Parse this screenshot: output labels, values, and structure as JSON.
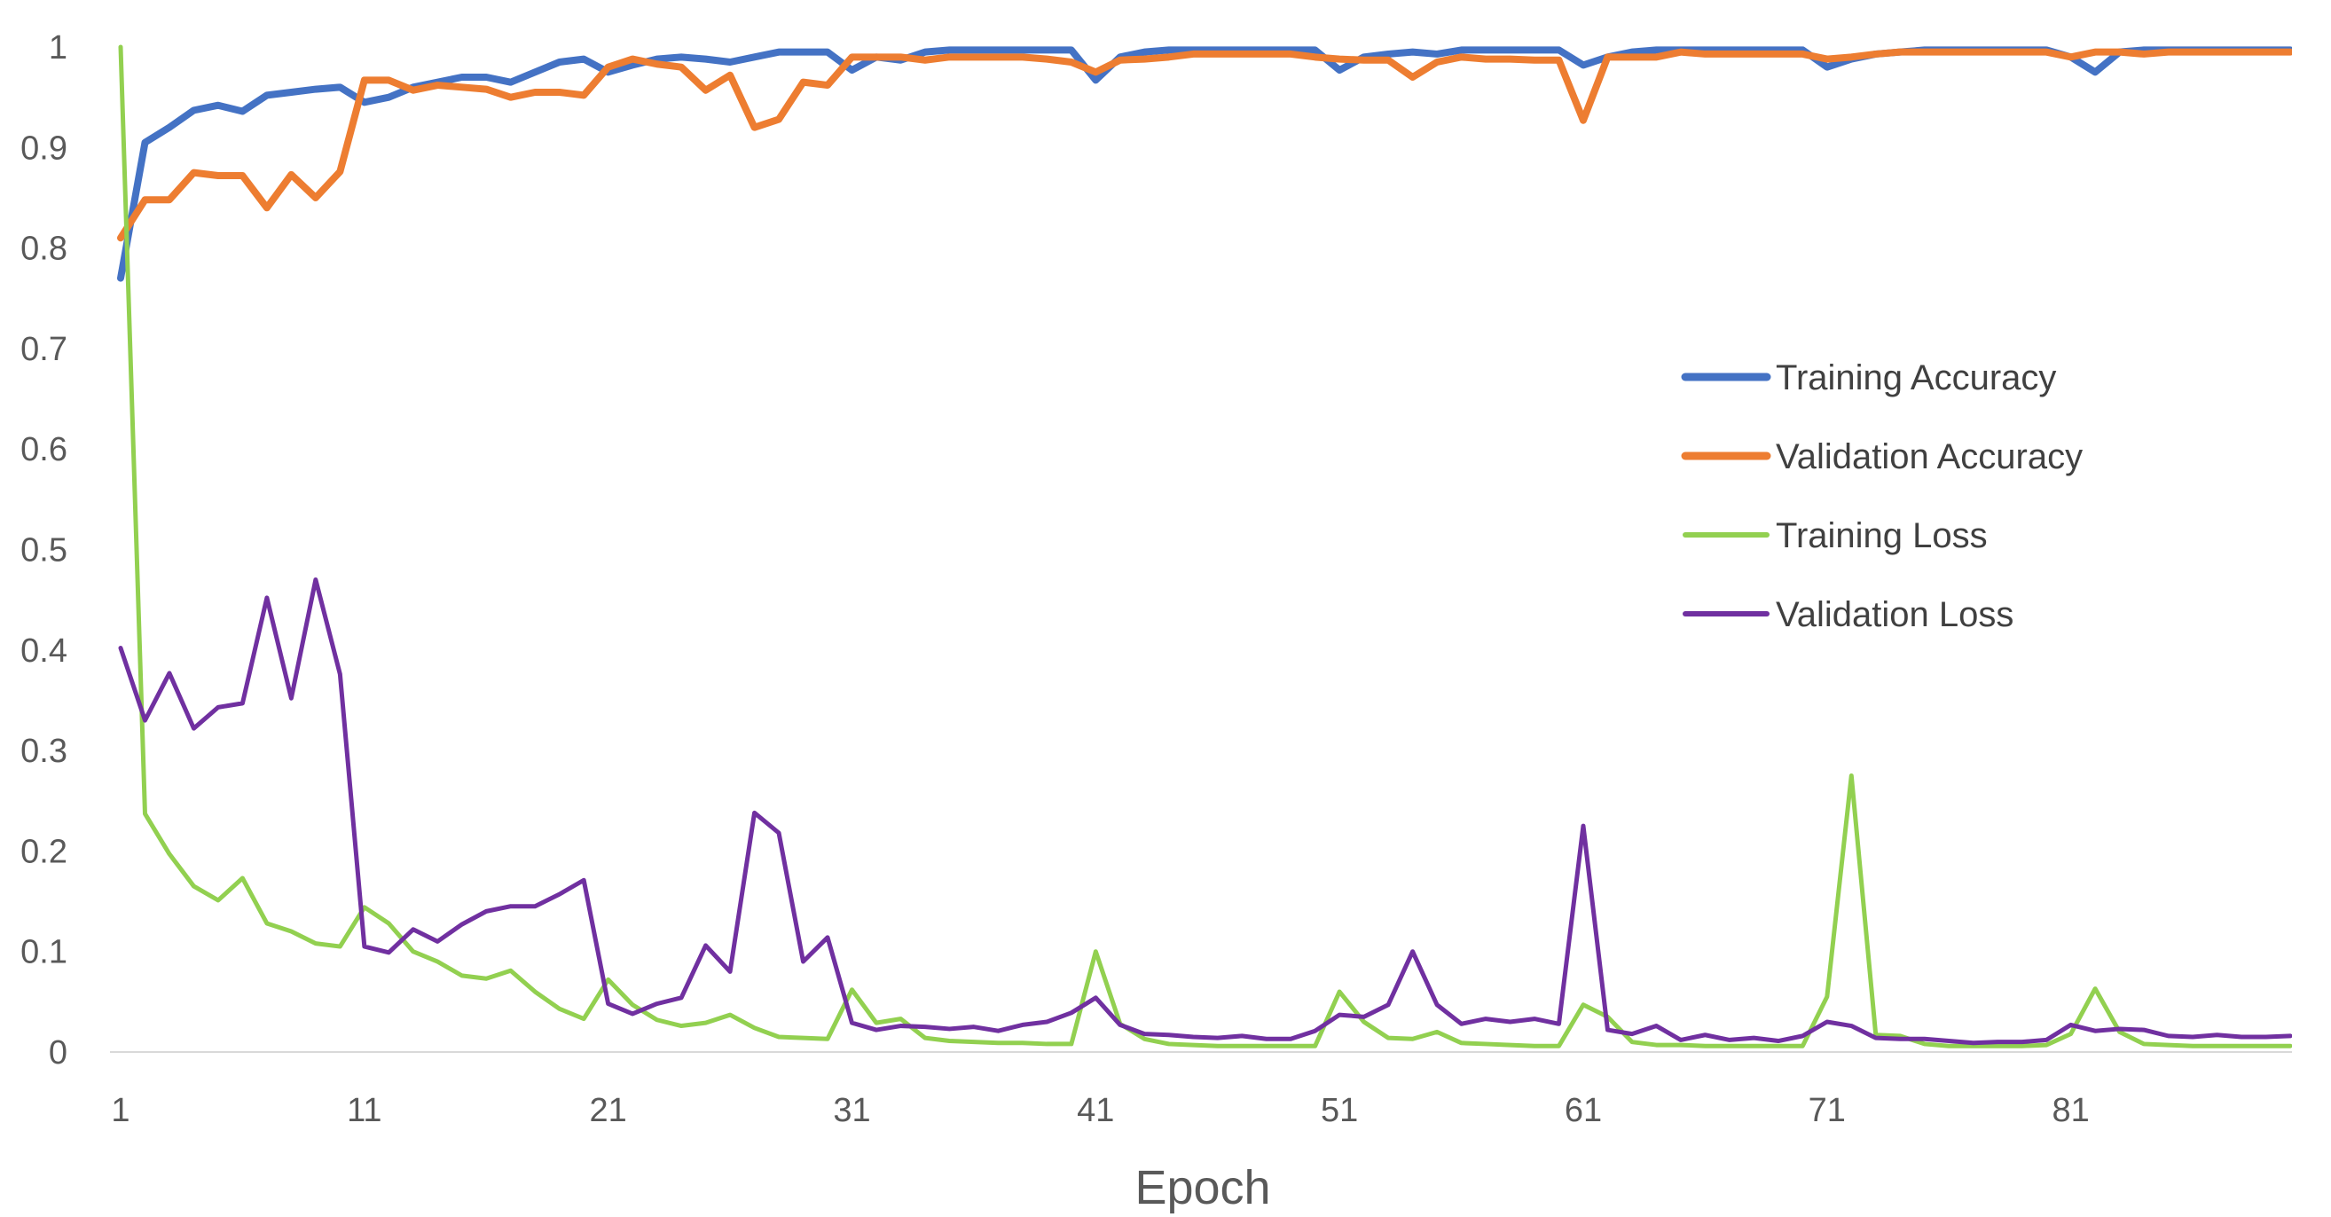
{
  "chart_data": {
    "type": "line",
    "title": "",
    "xlabel": "Epoch",
    "ylabel": "",
    "xlim": [
      1,
      90
    ],
    "ylim": [
      0,
      1
    ],
    "x_ticks": [
      "1",
      "11",
      "21",
      "31",
      "41",
      "51",
      "61",
      "71",
      "81"
    ],
    "x_tick_values": [
      1,
      11,
      21,
      31,
      41,
      51,
      61,
      71,
      81
    ],
    "y_ticks": [
      "0",
      "0.1",
      "0.2",
      "0.3",
      "0.4",
      "0.5",
      "0.6",
      "0.7",
      "0.8",
      "0.9",
      "1"
    ],
    "y_tick_values": [
      0,
      0.1,
      0.2,
      0.3,
      0.4,
      0.5,
      0.6,
      0.7,
      0.8,
      0.9,
      1
    ],
    "grid": false,
    "legend_position": "right-middle",
    "series": [
      {
        "name": "Training Accuracy",
        "color": "#4472C4",
        "values": [
          0.77,
          0.905,
          0.92,
          0.937,
          0.942,
          0.936,
          0.952,
          0.955,
          0.958,
          0.96,
          0.945,
          0.95,
          0.96,
          0.965,
          0.97,
          0.97,
          0.965,
          0.975,
          0.985,
          0.988,
          0.975,
          0.982,
          0.988,
          0.99,
          0.988,
          0.985,
          0.99,
          0.995,
          0.995,
          0.995,
          0.977,
          0.99,
          0.987,
          0.995,
          0.997,
          0.997,
          0.997,
          0.997,
          0.997,
          0.997,
          0.967,
          0.99,
          0.995,
          0.997,
          0.997,
          0.997,
          0.997,
          0.997,
          0.997,
          0.997,
          0.977,
          0.99,
          0.993,
          0.995,
          0.993,
          0.997,
          0.997,
          0.997,
          0.997,
          0.997,
          0.982,
          0.99,
          0.995,
          0.997,
          0.997,
          0.997,
          0.997,
          0.997,
          0.997,
          0.997,
          0.98,
          0.988,
          0.993,
          0.995,
          0.997,
          0.997,
          0.997,
          0.997,
          0.997,
          0.997,
          0.99,
          0.975,
          0.995,
          0.997,
          0.997,
          0.997,
          0.997,
          0.997,
          0.997,
          0.997
        ]
      },
      {
        "name": "Validation Accuracy",
        "color": "#ED7D31",
        "values": [
          0.81,
          0.848,
          0.848,
          0.875,
          0.872,
          0.872,
          0.84,
          0.873,
          0.85,
          0.876,
          0.967,
          0.967,
          0.957,
          0.962,
          0.96,
          0.958,
          0.95,
          0.955,
          0.955,
          0.952,
          0.98,
          0.988,
          0.983,
          0.98,
          0.957,
          0.972,
          0.92,
          0.928,
          0.965,
          0.962,
          0.99,
          0.99,
          0.99,
          0.987,
          0.99,
          0.99,
          0.99,
          0.99,
          0.988,
          0.985,
          0.975,
          0.987,
          0.988,
          0.99,
          0.993,
          0.993,
          0.993,
          0.993,
          0.993,
          0.99,
          0.988,
          0.987,
          0.987,
          0.97,
          0.985,
          0.99,
          0.988,
          0.988,
          0.987,
          0.987,
          0.927,
          0.99,
          0.99,
          0.99,
          0.995,
          0.993,
          0.993,
          0.993,
          0.993,
          0.993,
          0.988,
          0.99,
          0.993,
          0.995,
          0.995,
          0.995,
          0.995,
          0.995,
          0.995,
          0.995,
          0.99,
          0.995,
          0.995,
          0.993,
          0.995,
          0.995,
          0.995,
          0.995,
          0.995,
          0.995
        ]
      },
      {
        "name": "Training Loss",
        "color": "#92D050",
        "values": [
          1.0,
          0.237,
          0.197,
          0.165,
          0.151,
          0.173,
          0.128,
          0.12,
          0.108,
          0.105,
          0.144,
          0.128,
          0.1,
          0.09,
          0.076,
          0.073,
          0.081,
          0.06,
          0.043,
          0.033,
          0.072,
          0.047,
          0.032,
          0.026,
          0.029,
          0.037,
          0.024,
          0.015,
          0.014,
          0.013,
          0.062,
          0.029,
          0.033,
          0.014,
          0.011,
          0.01,
          0.009,
          0.009,
          0.008,
          0.008,
          0.1,
          0.028,
          0.013,
          0.008,
          0.007,
          0.006,
          0.006,
          0.006,
          0.006,
          0.006,
          0.06,
          0.03,
          0.014,
          0.013,
          0.02,
          0.009,
          0.008,
          0.007,
          0.006,
          0.006,
          0.047,
          0.035,
          0.01,
          0.007,
          0.007,
          0.006,
          0.006,
          0.006,
          0.006,
          0.006,
          0.055,
          0.275,
          0.017,
          0.016,
          0.008,
          0.006,
          0.006,
          0.006,
          0.006,
          0.007,
          0.018,
          0.063,
          0.02,
          0.008,
          0.007,
          0.006,
          0.006,
          0.006,
          0.006,
          0.006
        ]
      },
      {
        "name": "Validation Loss",
        "color": "#7030A0",
        "values": [
          0.402,
          0.33,
          0.377,
          0.322,
          0.343,
          0.347,
          0.452,
          0.352,
          0.47,
          0.376,
          0.105,
          0.099,
          0.122,
          0.11,
          0.127,
          0.14,
          0.145,
          0.145,
          0.157,
          0.171,
          0.048,
          0.038,
          0.048,
          0.054,
          0.106,
          0.08,
          0.238,
          0.218,
          0.09,
          0.114,
          0.029,
          0.022,
          0.026,
          0.025,
          0.023,
          0.025,
          0.021,
          0.027,
          0.03,
          0.039,
          0.054,
          0.027,
          0.018,
          0.017,
          0.015,
          0.014,
          0.016,
          0.013,
          0.013,
          0.021,
          0.037,
          0.035,
          0.047,
          0.1,
          0.047,
          0.028,
          0.033,
          0.03,
          0.033,
          0.028,
          0.225,
          0.022,
          0.018,
          0.026,
          0.012,
          0.017,
          0.012,
          0.014,
          0.011,
          0.016,
          0.03,
          0.026,
          0.014,
          0.013,
          0.013,
          0.011,
          0.009,
          0.01,
          0.01,
          0.012,
          0.027,
          0.021,
          0.023,
          0.022,
          0.016,
          0.015,
          0.017,
          0.015,
          0.015,
          0.016
        ]
      }
    ]
  }
}
